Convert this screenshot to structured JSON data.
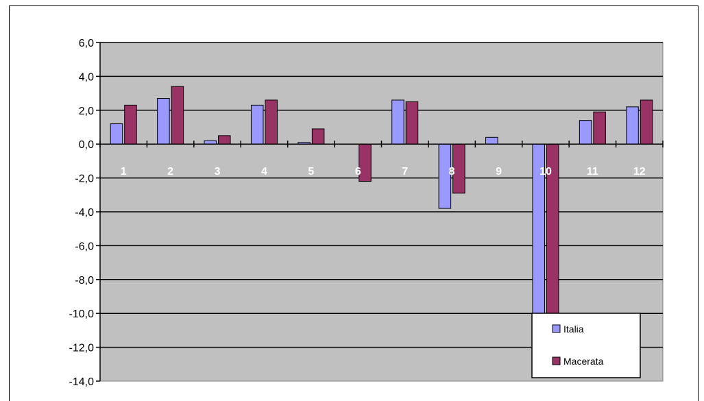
{
  "chart_data": {
    "type": "bar",
    "title": "",
    "xlabel": "",
    "ylabel": "",
    "categories": [
      "1",
      "2",
      "3",
      "4",
      "5",
      "6",
      "7",
      "8",
      "9",
      "10",
      "11",
      "12"
    ],
    "series": [
      {
        "name": "Italia",
        "color": "#9999ff",
        "values": [
          1.2,
          2.7,
          0.2,
          2.3,
          0.1,
          0.0,
          2.6,
          -3.8,
          0.4,
          -10.0,
          1.4,
          2.2
        ]
      },
      {
        "name": "Macerata",
        "color": "#993366",
        "values": [
          2.3,
          3.4,
          0.5,
          2.6,
          0.9,
          -2.2,
          2.5,
          -2.9,
          0.0,
          -10.0,
          1.9,
          2.6
        ]
      }
    ],
    "ylim": [
      -14,
      6
    ],
    "yticks": [
      "6,0",
      "4,0",
      "2,0",
      "0,0",
      "-2,0",
      "-4,0",
      "-6,0",
      "-8,0",
      "-10,0",
      "-12,0",
      "-14,0"
    ],
    "ytick_values": [
      6,
      4,
      2,
      0,
      -2,
      -4,
      -6,
      -8,
      -10,
      -12,
      -14
    ],
    "grid": true,
    "plot_background": "#c0c0c0",
    "legend_position": "bottom-right"
  }
}
